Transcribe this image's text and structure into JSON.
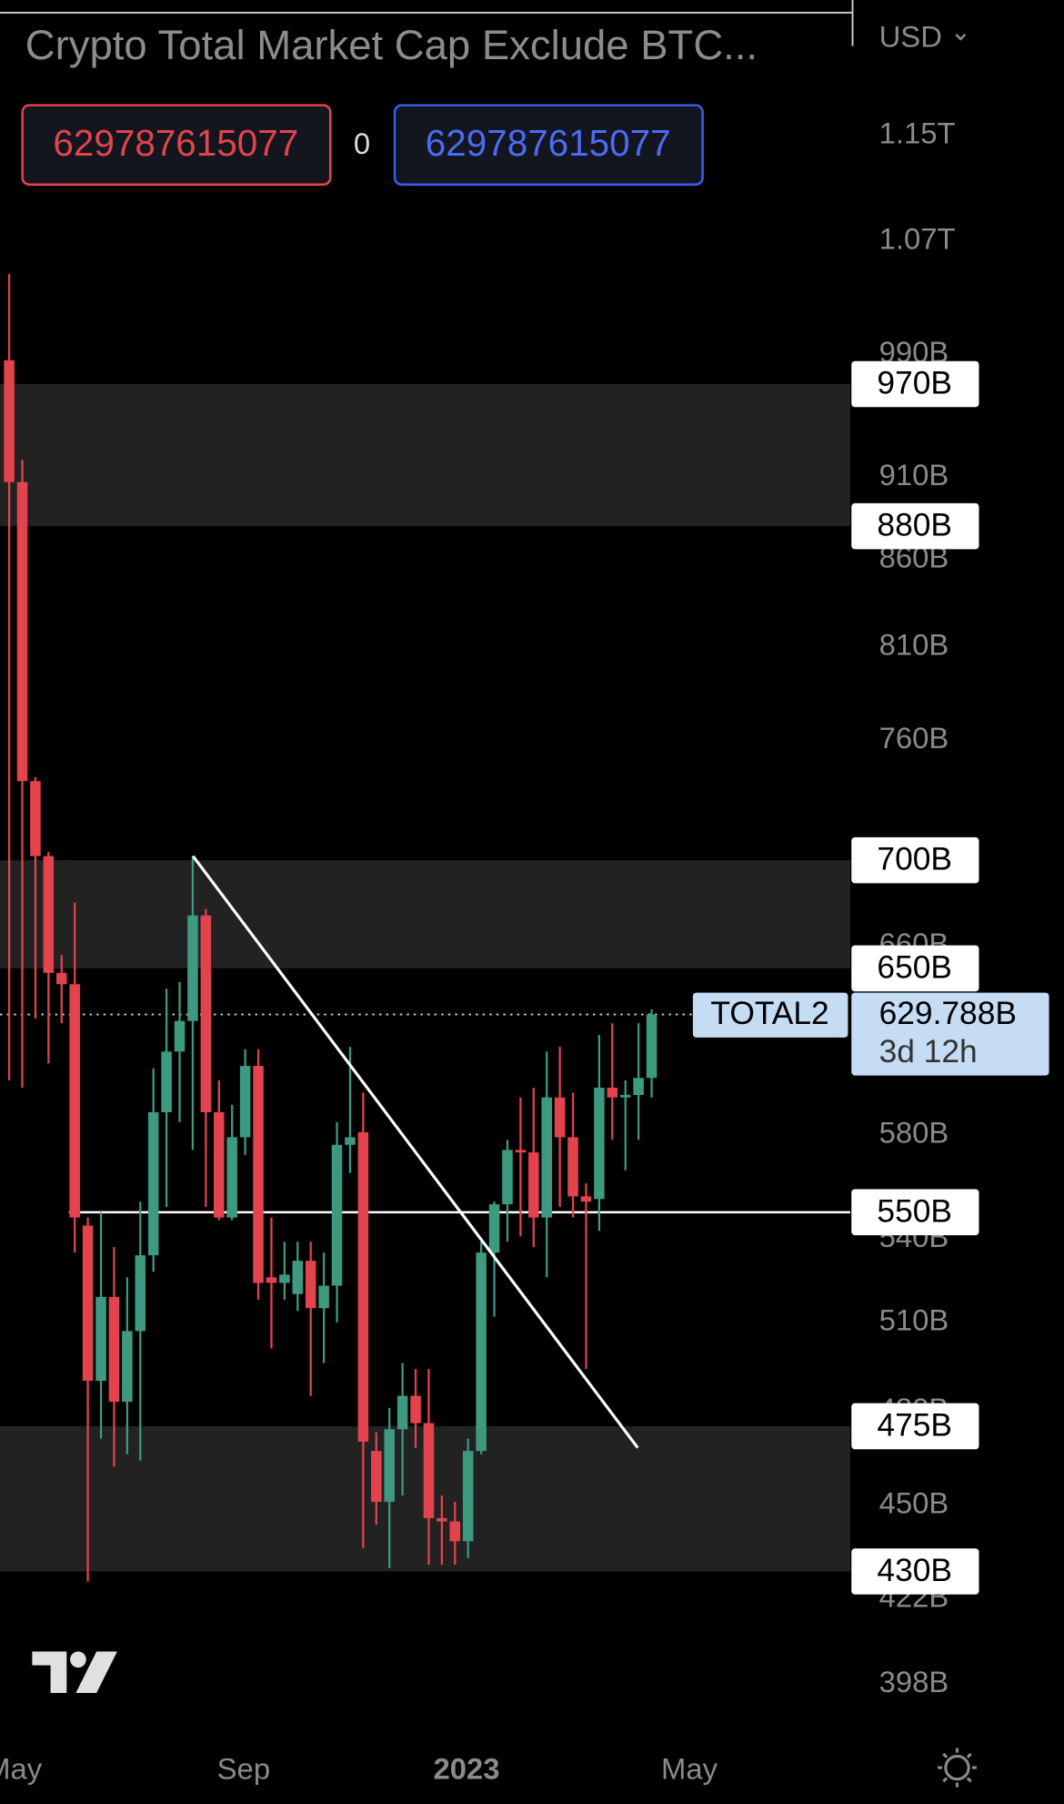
{
  "chart_data": {
    "type": "candlestick",
    "title": "Crypto Total Market Cap Exclude BTC...",
    "currency": "USD",
    "toolbar_values": [
      "629787615077",
      "0",
      "629787615077"
    ],
    "log_scale": true,
    "up_color": "#3d9a80",
    "down_color": "#e2434d",
    "open": [
      986,
      907,
      739,
      702,
      648,
      643,
      545,
      490,
      519,
      483,
      507,
      534,
      589,
      614,
      627,
      674,
      589,
      548,
      579,
      608,
      526,
      524,
      520,
      532,
      515,
      523,
      576,
      581,
      467,
      451,
      474,
      485,
      476,
      446,
      445,
      439,
      467,
      535,
      553,
      574,
      573,
      548,
      595,
      579,
      556,
      555,
      599,
      595,
      596,
      603
    ],
    "high": [
      1046,
      921,
      741,
      704,
      656,
      680,
      548,
      550,
      537,
      526,
      554,
      607,
      641,
      644,
      702,
      677,
      602,
      592,
      615,
      615,
      548,
      539,
      539,
      539,
      535,
      585,
      616,
      597,
      473,
      481,
      496,
      494,
      494,
      453,
      451,
      471,
      539,
      554,
      578,
      595,
      599,
      614,
      616,
      597,
      561,
      621,
      626,
      602,
      626,
      632
    ],
    "low": [
      602,
      599,
      628,
      609,
      626,
      535,
      427,
      471,
      462,
      466,
      464,
      528,
      552,
      585,
      574,
      552,
      547,
      547,
      572,
      518,
      501,
      518,
      514,
      485,
      496,
      510,
      565,
      437,
      444,
      431,
      453,
      468,
      432,
      432,
      432,
      434,
      466,
      512,
      539,
      541,
      537,
      526,
      552,
      548,
      494,
      543,
      578,
      566,
      578,
      595
    ],
    "close": [
      907,
      739,
      702,
      648,
      643,
      548,
      490,
      519,
      483,
      507,
      534,
      589,
      614,
      627,
      674,
      589,
      548,
      579,
      608,
      524,
      524,
      527,
      532,
      515,
      523,
      576,
      579,
      470,
      451,
      474,
      485,
      476,
      446,
      445,
      439,
      467,
      535,
      553,
      574,
      573,
      548,
      595,
      579,
      556,
      554,
      599,
      595,
      596,
      603,
      629.788
    ],
    "xlim": [
      -0.7,
      64.15
    ],
    "xticks": [
      {
        "value": 0.35,
        "label": "May"
      },
      {
        "value": 17.88,
        "label": "Sep"
      },
      {
        "value": 34.88,
        "label": "2023"
      },
      {
        "value": 51.88,
        "label": "May"
      }
    ],
    "ylim": [
      384,
      1262
    ],
    "yticks": [
      {
        "value": 1150,
        "label": "1.15T"
      },
      {
        "value": 1070,
        "label": "1.07T"
      },
      {
        "value": 990,
        "label": "990B"
      },
      {
        "value": 910,
        "label": "910B"
      },
      {
        "value": 860,
        "label": "860B"
      },
      {
        "value": 810,
        "label": "810B"
      },
      {
        "value": 760,
        "label": "760B"
      },
      {
        "value": 660,
        "label": "660B"
      },
      {
        "value": 580,
        "label": "580B"
      },
      {
        "value": 540,
        "label": "540B"
      },
      {
        "value": 510,
        "label": "510B"
      },
      {
        "value": 480,
        "label": "480B"
      },
      {
        "value": 450,
        "label": "450B"
      },
      {
        "value": 422,
        "label": "422B"
      },
      {
        "value": 398,
        "label": "398B"
      }
    ],
    "levels": [
      {
        "value": 970,
        "label": "970B",
        "role": "zone-top"
      },
      {
        "value": 880,
        "label": "880B",
        "role": "zone-bottom"
      },
      {
        "value": 700,
        "label": "700B",
        "role": "zone-top"
      },
      {
        "value": 650,
        "label": "650B",
        "role": "zone-bottom"
      },
      {
        "value": 550,
        "label": "550B",
        "role": "line"
      },
      {
        "value": 475,
        "label": "475B",
        "role": "zone-top"
      },
      {
        "value": 430,
        "label": "430B",
        "role": "zone-bottom"
      }
    ],
    "trend_line": {
      "x": [
        14.02,
        47.94
      ],
      "values": [
        702,
        468
      ],
      "color": "#ffffff"
    },
    "last_price": {
      "value": 629.788,
      "label": "629.788B",
      "symbol": "TOTAL2",
      "countdown": "3d 12h"
    }
  }
}
